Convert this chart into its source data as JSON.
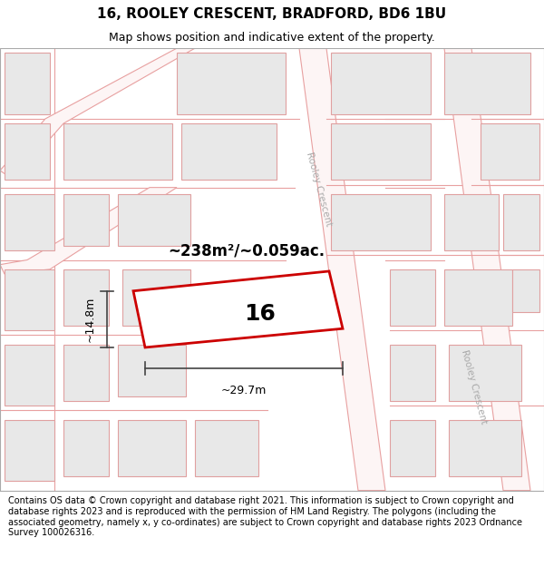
{
  "title": "16, ROOLEY CRESCENT, BRADFORD, BD6 1BU",
  "subtitle": "Map shows position and indicative extent of the property.",
  "footer": "Contains OS data © Crown copyright and database right 2021. This information is subject to Crown copyright and database rights 2023 and is reproduced with the permission of HM Land Registry. The polygons (including the associated geometry, namely x, y co-ordinates) are subject to Crown copyright and database rights 2023 Ordnance Survey 100026316.",
  "map_bg": "#ffffff",
  "road_line_color": "#e8a0a0",
  "building_face_color": "#e8e8e8",
  "building_edge_color": "#e0a0a0",
  "highlight_color": "#cc0000",
  "road_label": "Rooley Crescent",
  "road_label2": "Rooley Crescent",
  "plot_number": "16",
  "area_label": "~238m²/~0.059ac.",
  "width_label": "~29.7m",
  "height_label": "~14.8m",
  "title_fontsize": 11,
  "subtitle_fontsize": 9,
  "footer_fontsize": 7,
  "dim_color": "#444444",
  "road_label_color": "#aaaaaa"
}
